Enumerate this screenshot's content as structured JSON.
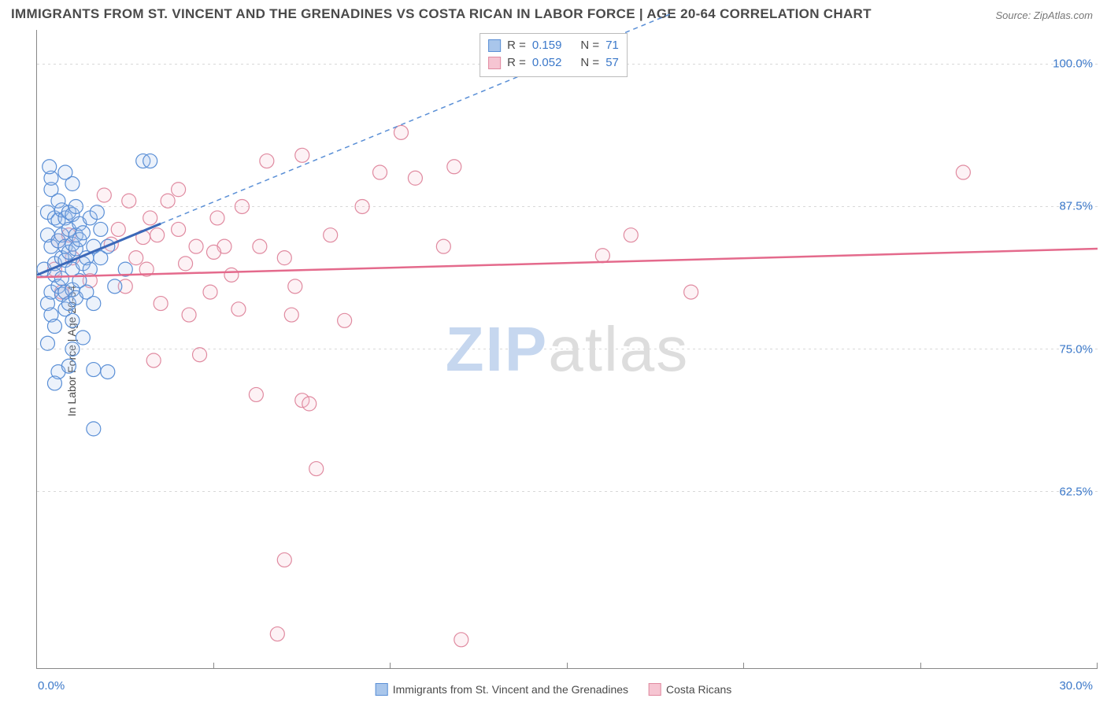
{
  "title": "IMMIGRANTS FROM ST. VINCENT AND THE GRENADINES VS COSTA RICAN IN LABOR FORCE | AGE 20-64 CORRELATION CHART",
  "source": "Source: ZipAtlas.com",
  "watermark": {
    "zip": "ZIP",
    "atlas": "atlas"
  },
  "chart": {
    "type": "scatter",
    "ylabel": "In Labor Force | Age 20-64",
    "xlim": [
      0,
      30
    ],
    "ylim": [
      47,
      103
    ],
    "y_ticks": [
      62.5,
      75.0,
      87.5,
      100.0
    ],
    "y_tick_labels": [
      "62.5%",
      "75.0%",
      "87.5%",
      "100.0%"
    ],
    "x_ticks": [
      0,
      5,
      10,
      15,
      20,
      25,
      30
    ],
    "x_axis_left_label": "0.0%",
    "x_axis_right_label": "30.0%",
    "grid_color": "#d8d8d8",
    "grid_dash": "3,4",
    "axis_color": "#888888",
    "background_color": "#ffffff",
    "title_color": "#4a4a4a",
    "title_fontsize": 17,
    "label_color": "#4a4a4a",
    "tick_label_color": "#3b78c9",
    "marker_radius": 9,
    "marker_stroke_width": 1.2,
    "marker_fill_opacity": 0.22,
    "series": {
      "a": {
        "name": "Immigrants from St. Vincent and the Grenadines",
        "color_stroke": "#5a8fd6",
        "color_fill": "#a9c6eb",
        "R": "0.159",
        "N": "71",
        "trend": {
          "x1": 0,
          "y1": 81.5,
          "x2": 3.5,
          "y2": 86.0,
          "dash_x1": 3.5,
          "dash_y1": 86.0,
          "dash_x2": 18.0,
          "dash_y2": 104.5
        },
        "points": [
          [
            0.2,
            82
          ],
          [
            0.3,
            85
          ],
          [
            0.3,
            79
          ],
          [
            0.3,
            87
          ],
          [
            0.4,
            84
          ],
          [
            0.4,
            80
          ],
          [
            0.4,
            78
          ],
          [
            0.4,
            89
          ],
          [
            0.5,
            86.5
          ],
          [
            0.5,
            82.5
          ],
          [
            0.5,
            77
          ],
          [
            0.5,
            81.5
          ],
          [
            0.6,
            84.5
          ],
          [
            0.6,
            88
          ],
          [
            0.6,
            80.5
          ],
          [
            0.6,
            86.3
          ],
          [
            0.6,
            73
          ],
          [
            0.7,
            85
          ],
          [
            0.7,
            83
          ],
          [
            0.7,
            79.8
          ],
          [
            0.7,
            87.2
          ],
          [
            0.7,
            81.2
          ],
          [
            0.8,
            84
          ],
          [
            0.8,
            86.5
          ],
          [
            0.8,
            78.5
          ],
          [
            0.8,
            82.8
          ],
          [
            0.8,
            80.0
          ],
          [
            0.9,
            85.5
          ],
          [
            0.9,
            83.5
          ],
          [
            0.9,
            79
          ],
          [
            0.9,
            87
          ],
          [
            1.0,
            84.2
          ],
          [
            1.0,
            86.8
          ],
          [
            1.0,
            80.2
          ],
          [
            1.0,
            77.5
          ],
          [
            1.0,
            82.0
          ],
          [
            1.1,
            85.0
          ],
          [
            1.1,
            83.8
          ],
          [
            1.1,
            79.5
          ],
          [
            1.1,
            87.5
          ],
          [
            1.2,
            84.6
          ],
          [
            1.2,
            81.0
          ],
          [
            1.2,
            86.0
          ],
          [
            1.3,
            82.5
          ],
          [
            1.3,
            85.2
          ],
          [
            1.4,
            83.0
          ],
          [
            1.4,
            80.0
          ],
          [
            1.5,
            86.5
          ],
          [
            1.5,
            82.0
          ],
          [
            1.6,
            84.0
          ],
          [
            1.6,
            79.0
          ],
          [
            1.6,
            73.2
          ],
          [
            1.7,
            87.0
          ],
          [
            1.8,
            83.0
          ],
          [
            1.8,
            85.5
          ],
          [
            1.0,
            89.5
          ],
          [
            0.4,
            90.0
          ],
          [
            2.0,
            84.0
          ],
          [
            2.2,
            80.5
          ],
          [
            2.5,
            82.0
          ],
          [
            2.0,
            73.0
          ],
          [
            0.9,
            73.5
          ],
          [
            1.0,
            75.0
          ],
          [
            1.3,
            76.0
          ],
          [
            0.5,
            72.0
          ],
          [
            1.6,
            68.0
          ],
          [
            3.0,
            91.5
          ],
          [
            3.2,
            91.5
          ],
          [
            0.8,
            90.5
          ],
          [
            0.35,
            91.0
          ],
          [
            0.3,
            75.5
          ]
        ]
      },
      "b": {
        "name": "Costa Ricans",
        "color_stroke": "#e08aa0",
        "color_fill": "#f6c5d2",
        "R": "0.052",
        "N": "57",
        "trend": {
          "x1": 0,
          "y1": 81.3,
          "x2": 30,
          "y2": 83.8
        },
        "points": [
          [
            0.5,
            82
          ],
          [
            0.6,
            84.5
          ],
          [
            0.7,
            80
          ],
          [
            0.9,
            85
          ],
          [
            1.0,
            83
          ],
          [
            1.9,
            88.5
          ],
          [
            2.1,
            84.2
          ],
          [
            2.3,
            85.5
          ],
          [
            2.5,
            80.5
          ],
          [
            2.6,
            88.0
          ],
          [
            3.0,
            84.8
          ],
          [
            3.1,
            82.0
          ],
          [
            3.3,
            74.0
          ],
          [
            3.4,
            85.0
          ],
          [
            3.5,
            79.0
          ],
          [
            3.7,
            88.0
          ],
          [
            4.0,
            85.5
          ],
          [
            4.2,
            82.5
          ],
          [
            4.3,
            78.0
          ],
          [
            4.5,
            84.0
          ],
          [
            4.6,
            74.5
          ],
          [
            4.9,
            80.0
          ],
          [
            5.1,
            86.5
          ],
          [
            5.3,
            84.0
          ],
          [
            5.5,
            81.5
          ],
          [
            5.7,
            78.5
          ],
          [
            5.8,
            87.5
          ],
          [
            6.2,
            71.0
          ],
          [
            6.3,
            84.0
          ],
          [
            6.5,
            91.5
          ],
          [
            6.8,
            50.0
          ],
          [
            7.0,
            83.0
          ],
          [
            7.2,
            78.0
          ],
          [
            7.3,
            80.5
          ],
          [
            7.5,
            92.0
          ],
          [
            7.5,
            70.5
          ],
          [
            7.7,
            70.2
          ],
          [
            7.9,
            64.5
          ],
          [
            7.0,
            56.5
          ],
          [
            8.3,
            85.0
          ],
          [
            8.7,
            77.5
          ],
          [
            9.2,
            87.5
          ],
          [
            9.7,
            90.5
          ],
          [
            10.3,
            94.0
          ],
          [
            10.7,
            90.0
          ],
          [
            11.8,
            91.0
          ],
          [
            12.0,
            49.5
          ],
          [
            11.5,
            84.0
          ],
          [
            16.0,
            83.2
          ],
          [
            16.8,
            85.0
          ],
          [
            18.5,
            80.0
          ],
          [
            26.2,
            90.5
          ],
          [
            4.0,
            89.0
          ],
          [
            3.2,
            86.5
          ],
          [
            2.8,
            83.0
          ],
          [
            1.5,
            81.0
          ],
          [
            5.0,
            83.5
          ]
        ]
      }
    },
    "stats_legend": {
      "labels": {
        "R": "R  =",
        "N": "N  ="
      }
    },
    "bottom_legend_gap": 26
  }
}
